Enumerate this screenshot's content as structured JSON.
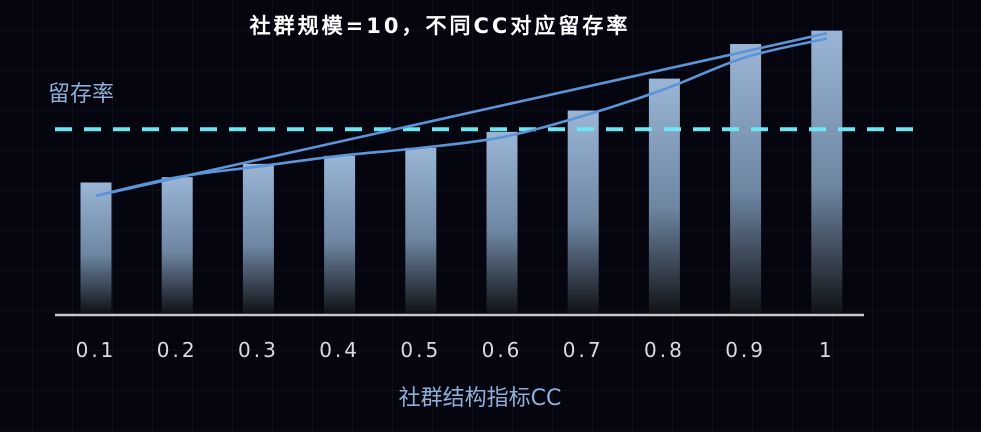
{
  "chart_data": {
    "type": "bar",
    "title": "社群规模=10，不同CC对应留存率",
    "xlabel": "社群结构指标CC",
    "ylabel": "留存率",
    "categories": [
      "0.1",
      "0.2",
      "0.3",
      "0.4",
      "0.5",
      "0.6",
      "0.7",
      "0.8",
      "0.9",
      "1"
    ],
    "series": [
      {
        "values": [
          0.49,
          0.51,
          0.56,
          0.59,
          0.62,
          0.68,
          0.76,
          0.88,
          1.01,
          1.06
        ]
      }
    ],
    "trend_line": [
      0.44,
      0.51,
      0.55,
      0.59,
      0.62,
      0.66,
      0.74,
      0.84,
      0.96,
      1.03
    ],
    "linear_fit": {
      "start": 0.44,
      "end": 1.05
    },
    "reference_line": 0.69,
    "ylim": [
      0,
      1.1
    ],
    "grid": false,
    "legend": "none",
    "colors": {
      "background": "#05050f",
      "bar_top": "#9ab5d6",
      "bar_bottom": "#111317",
      "line": "#5b95d8",
      "reference": "#6ee6f2",
      "axis": "#c9c9c9"
    }
  }
}
